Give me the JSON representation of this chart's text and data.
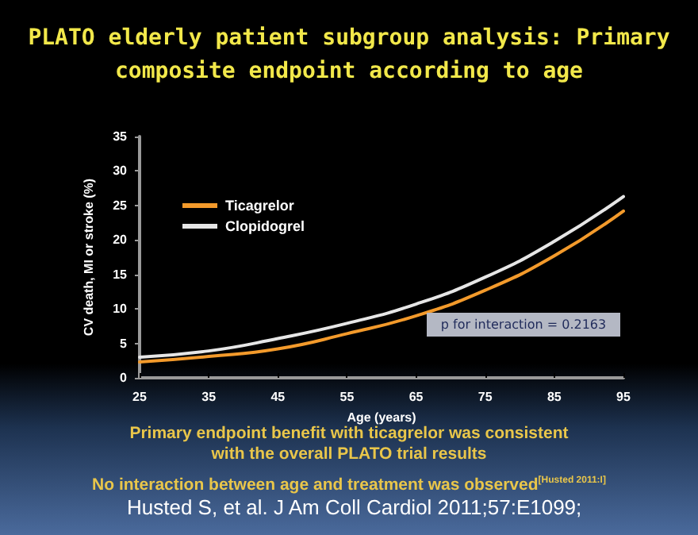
{
  "chart_data": {
    "type": "line",
    "title": "PLATO elderly patient subgroup analysis: Primary composite endpoint according to age",
    "xlabel": "Age (years)",
    "ylabel": "CV death, MI or stroke (%)",
    "x": [
      25,
      35,
      45,
      55,
      65,
      75,
      85,
      95
    ],
    "series": [
      {
        "name": "Ticagrelor",
        "color": "#f39a2b",
        "values": [
          2.3,
          3.1,
          4.2,
          6.4,
          9.0,
          12.7,
          17.7,
          24.2
        ]
      },
      {
        "name": "Clopidogrel",
        "color": "#e6e6e6",
        "values": [
          3.0,
          3.9,
          5.7,
          7.9,
          10.7,
          14.6,
          19.8,
          26.3
        ]
      }
    ],
    "xlim": [
      25,
      95
    ],
    "xticks": [
      25,
      35,
      45,
      55,
      65,
      75,
      85,
      95
    ],
    "ylim": [
      0,
      35
    ],
    "yticks": [
      0,
      5,
      10,
      15,
      20,
      25,
      30,
      35
    ],
    "grid": false,
    "legend": "top left",
    "marker": "none",
    "line_style": "solid",
    "annotations": [
      "p for interaction = 0.2163",
      "Primary endpoint benefit with ticagrelor was consistent with the overall PLATO trial results",
      "No interaction between age and treatment was observed$^{[Husted 2011:I]}$",
      "Husted S, et al. J Am Coll Cardiol 2011;57:E1099;"
    ]
  }
}
